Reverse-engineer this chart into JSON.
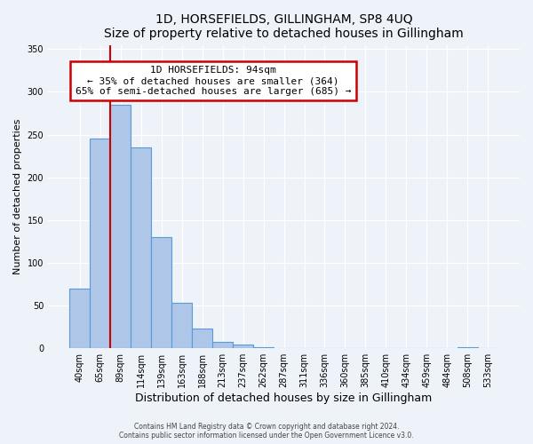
{
  "title": "1D, HORSEFIELDS, GILLINGHAM, SP8 4UQ",
  "subtitle": "Size of property relative to detached houses in Gillingham",
  "xlabel": "Distribution of detached houses by size in Gillingham",
  "ylabel": "Number of detached properties",
  "bar_values": [
    70,
    245,
    285,
    235,
    130,
    53,
    23,
    8,
    4,
    1,
    0,
    0,
    0,
    0,
    0,
    0,
    0,
    0,
    0,
    1,
    0
  ],
  "bar_labels": [
    "40sqm",
    "65sqm",
    "89sqm",
    "114sqm",
    "139sqm",
    "163sqm",
    "188sqm",
    "213sqm",
    "237sqm",
    "262sqm",
    "287sqm",
    "311sqm",
    "336sqm",
    "360sqm",
    "385sqm",
    "410sqm",
    "434sqm",
    "459sqm",
    "484sqm",
    "508sqm",
    "533sqm"
  ],
  "bar_color": "#aec6e8",
  "bar_edge_color": "#5b9bd5",
  "ylim": [
    0,
    355
  ],
  "yticks": [
    0,
    50,
    100,
    150,
    200,
    250,
    300,
    350
  ],
  "vline_pos": 1.5,
  "annotation_title": "1D HORSEFIELDS: 94sqm",
  "annotation_line1": "← 35% of detached houses are smaller (364)",
  "annotation_line2": "65% of semi-detached houses are larger (685) →",
  "footer1": "Contains HM Land Registry data © Crown copyright and database right 2024.",
  "footer2": "Contains public sector information licensed under the Open Government Licence v3.0.",
  "background_color": "#eef2f9",
  "annotation_box_color": "#ffffff",
  "annotation_box_edge": "#cc0000",
  "vline_color": "#cc0000"
}
